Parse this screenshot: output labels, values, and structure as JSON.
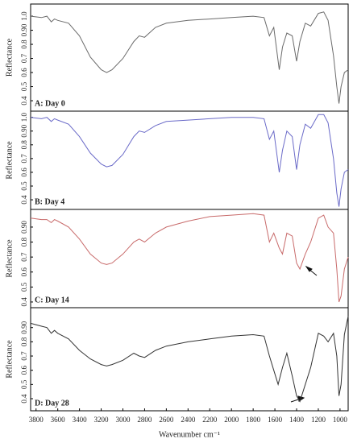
{
  "chart_data": [
    {
      "type": "line",
      "label": "A: Day 0",
      "ylabel": "Reflectance",
      "color": "#6b6b6b",
      "x": [
        3850,
        3750,
        3700,
        3660,
        3630,
        3600,
        3500,
        3400,
        3300,
        3200,
        3150,
        3100,
        3000,
        2900,
        2850,
        2800,
        2700,
        2600,
        2400,
        2200,
        2000,
        1800,
        1700,
        1650,
        1610,
        1560,
        1530,
        1490,
        1440,
        1400,
        1370,
        1320,
        1270,
        1200,
        1150,
        1110,
        1060,
        1030,
        1010,
        990,
        960,
        925
      ],
      "values": [
        1.0,
        0.99,
        1.0,
        0.96,
        0.98,
        0.97,
        0.95,
        0.86,
        0.71,
        0.62,
        0.6,
        0.62,
        0.7,
        0.82,
        0.86,
        0.85,
        0.92,
        0.95,
        0.97,
        0.98,
        0.99,
        1.0,
        0.99,
        0.86,
        0.92,
        0.62,
        0.78,
        0.88,
        0.86,
        0.68,
        0.82,
        0.95,
        0.93,
        1.02,
        1.03,
        0.97,
        0.72,
        0.5,
        0.38,
        0.5,
        0.6,
        0.62
      ],
      "xlim": [
        3850,
        925
      ],
      "ylim": [
        0.326,
        1.086
      ],
      "yticks": [
        0.4,
        0.5,
        0.6,
        0.7,
        0.8,
        {
          "value": 0.9,
          "label": "0.90"
        },
        {
          "value": 1,
          "label": "1.0"
        }
      ]
    },
    {
      "type": "line",
      "label": "B: Day 4",
      "ylabel": "Reflectance",
      "color": "#6a6ac8",
      "x": [
        3850,
        3750,
        3700,
        3660,
        3630,
        3600,
        3500,
        3400,
        3300,
        3200,
        3150,
        3100,
        3000,
        2900,
        2850,
        2800,
        2700,
        2600,
        2400,
        2200,
        2000,
        1800,
        1700,
        1650,
        1610,
        1560,
        1530,
        1490,
        1440,
        1400,
        1370,
        1320,
        1270,
        1200,
        1150,
        1110,
        1060,
        1030,
        1010,
        990,
        960,
        925
      ],
      "values": [
        1.0,
        0.99,
        1.0,
        0.97,
        0.99,
        0.98,
        0.95,
        0.86,
        0.74,
        0.66,
        0.64,
        0.65,
        0.73,
        0.86,
        0.9,
        0.89,
        0.94,
        0.97,
        0.98,
        0.99,
        1.0,
        1.0,
        0.99,
        0.84,
        0.9,
        0.6,
        0.76,
        0.9,
        0.86,
        0.62,
        0.8,
        0.95,
        0.92,
        1.02,
        1.02,
        0.96,
        0.7,
        0.45,
        0.35,
        0.48,
        0.6,
        0.62
      ],
      "xlim": [
        3850,
        925
      ],
      "ylim": [
        0.33,
        1.045
      ],
      "yticks": [
        0.4,
        0.5,
        0.6,
        0.7,
        0.8,
        {
          "value": 0.9,
          "label": "0.90"
        },
        {
          "value": 1,
          "label": "1.0"
        }
      ]
    },
    {
      "type": "line",
      "label": "C: Day 14",
      "ylabel": "Reflectance",
      "color": "#c86a6a",
      "x": [
        3850,
        3750,
        3700,
        3660,
        3630,
        3600,
        3500,
        3400,
        3300,
        3200,
        3150,
        3100,
        3000,
        2900,
        2850,
        2800,
        2700,
        2600,
        2400,
        2200,
        2000,
        1800,
        1700,
        1650,
        1610,
        1560,
        1530,
        1490,
        1440,
        1400,
        1370,
        1320,
        1270,
        1200,
        1150,
        1110,
        1060,
        1030,
        1010,
        990,
        960,
        925
      ],
      "values": [
        0.96,
        0.95,
        0.95,
        0.93,
        0.95,
        0.94,
        0.9,
        0.82,
        0.72,
        0.66,
        0.65,
        0.66,
        0.72,
        0.8,
        0.82,
        0.8,
        0.86,
        0.9,
        0.94,
        0.97,
        0.98,
        0.99,
        0.98,
        0.8,
        0.86,
        0.76,
        0.72,
        0.86,
        0.84,
        0.66,
        0.62,
        0.72,
        0.8,
        0.96,
        0.98,
        0.9,
        0.86,
        0.62,
        0.4,
        0.44,
        0.62,
        0.7
      ],
      "xlim": [
        3850,
        925
      ],
      "ylim": [
        0.362,
        1.018
      ],
      "yticks": [
        0.4,
        0.5,
        0.6,
        0.7,
        0.8,
        {
          "value": 0.9,
          "label": "0.90"
        }
      ]
    },
    {
      "type": "line",
      "label": "D: Day 28",
      "ylabel": "Reflectance",
      "color": "#333333",
      "x": [
        3850,
        3750,
        3700,
        3660,
        3630,
        3600,
        3500,
        3400,
        3300,
        3200,
        3150,
        3100,
        3000,
        2900,
        2850,
        2800,
        2700,
        2600,
        2400,
        2200,
        2000,
        1800,
        1700,
        1650,
        1610,
        1570,
        1530,
        1490,
        1440,
        1400,
        1370,
        1320,
        1270,
        1200,
        1150,
        1110,
        1060,
        1030,
        1010,
        990,
        960,
        925
      ],
      "values": [
        0.93,
        0.91,
        0.9,
        0.86,
        0.88,
        0.86,
        0.82,
        0.74,
        0.68,
        0.64,
        0.63,
        0.64,
        0.67,
        0.72,
        0.7,
        0.69,
        0.74,
        0.77,
        0.8,
        0.82,
        0.84,
        0.85,
        0.84,
        0.7,
        0.6,
        0.5,
        0.62,
        0.72,
        0.56,
        0.42,
        0.38,
        0.5,
        0.62,
        0.86,
        0.84,
        0.8,
        0.86,
        0.7,
        0.42,
        0.5,
        0.85,
        0.98
      ],
      "xlim": [
        3850,
        925
      ],
      "ylim": [
        0.315,
        1.04
      ],
      "yticks": [
        0.4,
        0.5,
        0.6,
        0.7,
        0.8,
        {
          "value": 0.9,
          "label": "0.90"
        }
      ],
      "xticks": [
        3800,
        3600,
        3400,
        3200,
        3000,
        2800,
        2600,
        2400,
        2200,
        2000,
        1800,
        1600,
        1400,
        1200,
        1000
      ],
      "xlabel": "Wavenumber cm⁻¹"
    }
  ]
}
